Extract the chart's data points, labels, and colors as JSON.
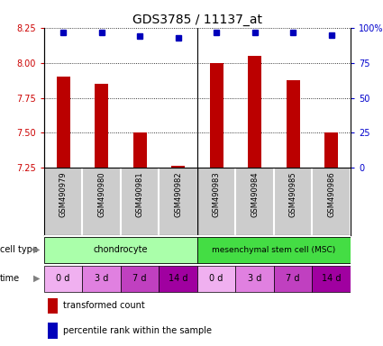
{
  "title": "GDS3785 / 11137_at",
  "samples": [
    "GSM490979",
    "GSM490980",
    "GSM490981",
    "GSM490982",
    "GSM490983",
    "GSM490984",
    "GSM490985",
    "GSM490986"
  ],
  "bar_values": [
    7.9,
    7.85,
    7.5,
    7.265,
    8.0,
    8.05,
    7.88,
    7.5
  ],
  "dot_values": [
    97,
    97,
    94,
    93,
    97,
    97,
    97,
    95
  ],
  "ylim_left": [
    7.25,
    8.25
  ],
  "ylim_right": [
    0,
    100
  ],
  "yticks_left": [
    7.25,
    7.5,
    7.75,
    8.0,
    8.25
  ],
  "yticks_right": [
    0,
    25,
    50,
    75,
    100
  ],
  "time_labels": [
    "0 d",
    "3 d",
    "7 d",
    "14 d",
    "0 d",
    "3 d",
    "7 d",
    "14 d"
  ],
  "time_colors": [
    "#f0b0f0",
    "#e080e0",
    "#c040c0",
    "#a000a0",
    "#f0b0f0",
    "#e080e0",
    "#c040c0",
    "#a000a0"
  ],
  "cell_type_labels": [
    "chondrocyte",
    "mesenchymal stem cell (MSC)"
  ],
  "cell_type_colors": [
    "#aaffaa",
    "#44dd44"
  ],
  "bar_color": "#bb0000",
  "dot_color": "#0000bb",
  "bar_bottom": 7.25,
  "legend_bar_label": "transformed count",
  "legend_dot_label": "percentile rank within the sample",
  "sample_bg_color": "#cccccc",
  "left_axis_color": "#cc0000",
  "right_axis_color": "#0000cc",
  "grid_color": "#000000"
}
